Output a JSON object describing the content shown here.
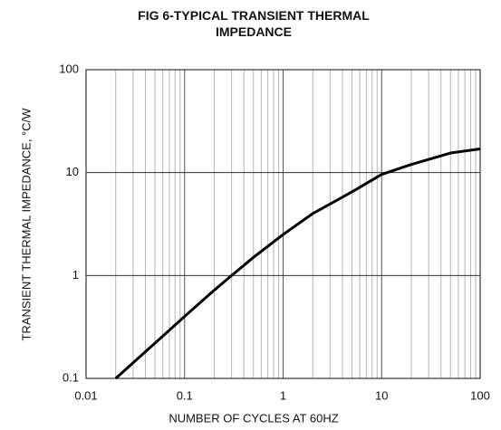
{
  "chart_data": {
    "type": "line",
    "title": "FIG 6-TYPICAL TRANSIENT THERMAL IMPEDANCE",
    "x_label": "NUMBER OF CYCLES AT 60HZ",
    "y_label": "TRANSIENT THERMAL IMPEDANCE, °C/W",
    "x_scale": "log",
    "y_scale": "log",
    "grid": true,
    "minor_x_grid": true,
    "xlim": [
      0.01,
      100
    ],
    "ylim": [
      0.1,
      100
    ],
    "xticks": [
      0.01,
      0.1,
      1,
      10,
      100
    ],
    "yticks": [
      0.1,
      1,
      10,
      100
    ],
    "series": [
      {
        "name": "Transient thermal impedance",
        "color": "#000000",
        "x": [
          0.02,
          0.05,
          0.1,
          0.2,
          0.3,
          0.5,
          1,
          2,
          5,
          10,
          20,
          50,
          100
        ],
        "values": [
          0.1,
          0.22,
          0.4,
          0.72,
          1,
          1.5,
          2.5,
          4,
          6.5,
          9.6,
          12,
          15.5,
          17
        ]
      }
    ]
  }
}
